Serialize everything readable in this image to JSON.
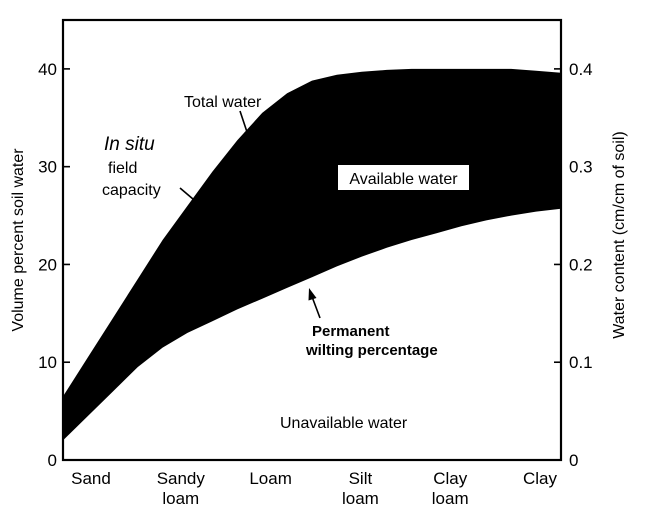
{
  "chart_data": {
    "type": "area",
    "title": "",
    "xlabel": "",
    "ylabel": "Volume percent soil water",
    "ylabel_right": "Water content (cm/cm of soil)",
    "categories": [
      "Sand",
      "Sandy loam",
      "Loam",
      "Silt loam",
      "Clay loam",
      "Clay"
    ],
    "x_tick_labels": [
      [
        "Sand"
      ],
      [
        "Sandy",
        "loam"
      ],
      [
        "Loam"
      ],
      [
        "Silt",
        "loam"
      ],
      [
        "Clay",
        "loam"
      ],
      [
        "Clay"
      ]
    ],
    "ylim": [
      0,
      45
    ],
    "yticks": [
      "0",
      "10",
      "20",
      "30",
      "40"
    ],
    "ylim_right": [
      0,
      0.45
    ],
    "yticks_right": [
      "0",
      "0.1",
      "0.2",
      "0.3",
      "0.4"
    ],
    "grid": false,
    "band": {
      "fill": "#000000",
      "x": [
        0,
        0.25,
        0.5,
        0.75,
        1,
        1.25,
        1.5,
        1.75,
        2,
        2.25,
        2.5,
        2.75,
        3,
        3.25,
        3.5,
        3.75,
        4,
        4.25,
        4.5,
        4.75,
        5
      ],
      "upper": [
        6.5,
        10.5,
        14.5,
        18.5,
        22.5,
        26,
        29.5,
        32.7,
        35.5,
        37.5,
        38.8,
        39.4,
        39.7,
        39.9,
        40.0,
        40.0,
        40.0,
        40.0,
        40.0,
        39.8,
        39.6
      ],
      "lower": [
        2,
        4.5,
        7,
        9.5,
        11.5,
        13.0,
        14.2,
        15.4,
        16.5,
        17.6,
        18.7,
        19.8,
        20.8,
        21.7,
        22.5,
        23.2,
        23.9,
        24.5,
        25.0,
        25.4,
        25.7
      ]
    },
    "annotations": {
      "total_water": "Total water",
      "in_situ": "In situ",
      "field": "field",
      "capacity": "capacity",
      "available_water": "Available water",
      "permanent": "Permanent",
      "wilting": "wilting percentage",
      "unavailable_water": "Unavailable water"
    }
  }
}
